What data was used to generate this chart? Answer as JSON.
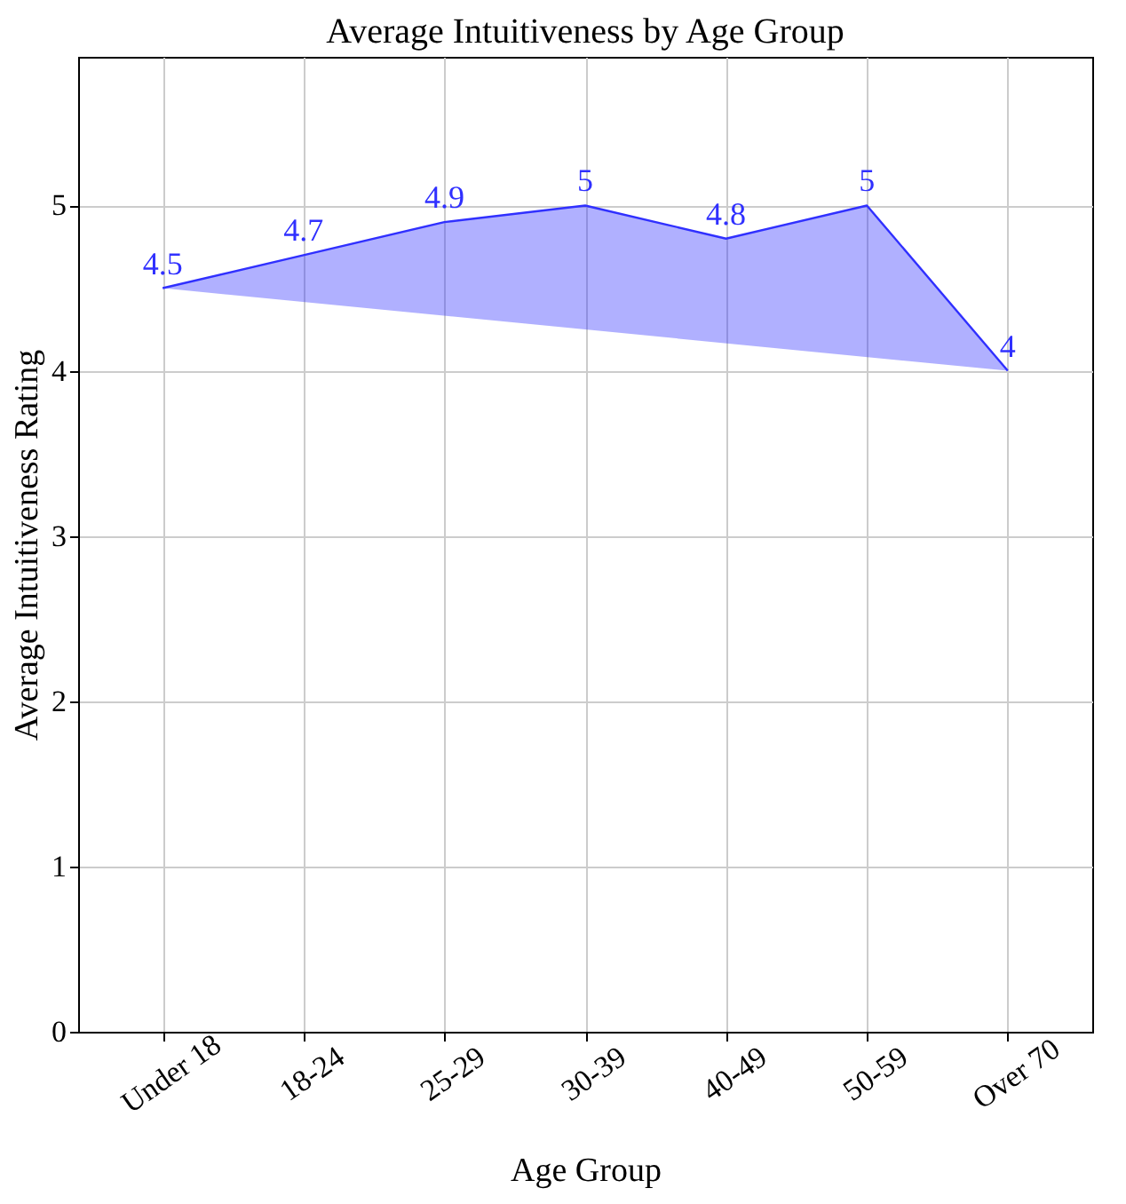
{
  "chart_data": {
    "type": "area",
    "title": "Average Intuitiveness by Age Group",
    "xlabel": "Age Group",
    "ylabel": "Average Intuitiveness Rating",
    "categories": [
      "Under 18",
      "18-24",
      "25-29",
      "30-39",
      "40-49",
      "50-59",
      "Over 70"
    ],
    "series": [
      {
        "color": "#3030ff",
        "values": [
          4.5,
          4.7,
          4.9,
          5,
          4.8,
          5,
          4
        ]
      }
    ],
    "ylim": [
      0,
      5.9
    ],
    "yticks": [
      0,
      1,
      2,
      3,
      4,
      5
    ],
    "grid": true,
    "data_labels": true
  }
}
